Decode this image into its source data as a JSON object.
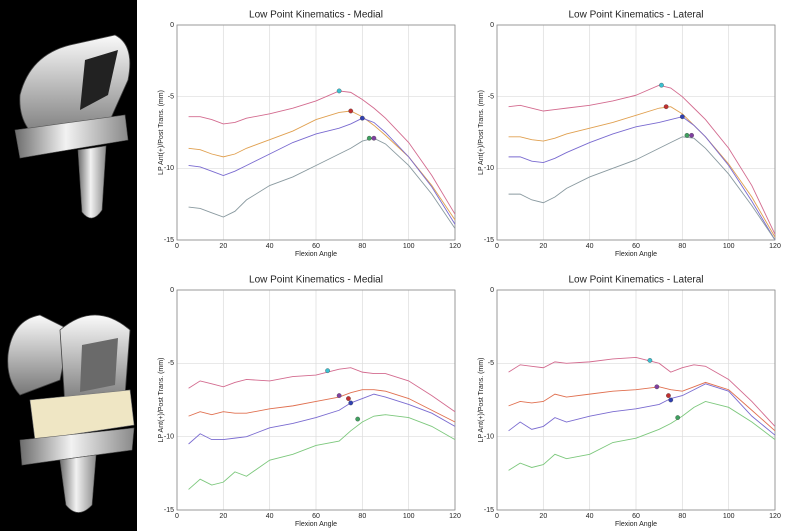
{
  "chart_data": [
    {
      "type": "line",
      "title": "Low Point Kinematics - Medial",
      "xlabel": "Flexion Angle",
      "ylabel": "LP Ant(+)/Post Trans. (mm)",
      "xlim": [
        0,
        120
      ],
      "ylim": [
        -15,
        0
      ],
      "xticks": [
        0,
        20,
        40,
        60,
        80,
        100,
        120
      ],
      "yticks": [
        0,
        -5,
        -10,
        -15
      ],
      "grid": true,
      "x": [
        5,
        10,
        15,
        20,
        25,
        30,
        40,
        50,
        60,
        70,
        75,
        80,
        85,
        90,
        100,
        110,
        120
      ],
      "series": [
        {
          "color": "#d36b8f",
          "values": [
            -6.4,
            -6.4,
            -6.6,
            -6.9,
            -6.8,
            -6.5,
            -6.2,
            -5.8,
            -5.3,
            -4.6,
            -4.7,
            -5.2,
            -5.8,
            -6.5,
            -8.2,
            -10.5,
            -13.2
          ]
        },
        {
          "color": "#e0a050",
          "values": [
            -8.6,
            -8.7,
            -9.0,
            -9.2,
            -9.0,
            -8.6,
            -8.0,
            -7.4,
            -6.6,
            -6.1,
            -6.0,
            -6.4,
            -7.0,
            -7.7,
            -9.2,
            -11.2,
            -13.6
          ]
        },
        {
          "color": "#7a6bd0",
          "values": [
            -9.8,
            -9.9,
            -10.2,
            -10.5,
            -10.2,
            -9.8,
            -9.0,
            -8.2,
            -7.6,
            -7.2,
            -6.9,
            -6.5,
            -6.8,
            -7.5,
            -9.2,
            -11.3,
            -13.9
          ]
        },
        {
          "color": "#8a9aa0",
          "values": [
            -12.7,
            -12.8,
            -13.1,
            -13.4,
            -13.0,
            -12.2,
            -11.2,
            -10.6,
            -9.8,
            -9.0,
            -8.6,
            -8.1,
            -7.9,
            -8.3,
            -9.8,
            -11.8,
            -14.2
          ]
        }
      ],
      "points": {
        "x": [
          70,
          75,
          80,
          83,
          85
        ],
        "y": [
          -4.6,
          -6.0,
          -6.5,
          -7.9,
          -7.9
        ],
        "colors": [
          "#3cc0d0",
          "#c03030",
          "#3040b0",
          "#40a060",
          "#8040a0"
        ]
      }
    },
    {
      "type": "line",
      "title": "Low Point Kinematics - Lateral",
      "xlabel": "Flexion Angle",
      "ylabel": "LP Ant(+)/Post Trans. (mm)",
      "xlim": [
        0,
        120
      ],
      "ylim": [
        -15,
        0
      ],
      "xticks": [
        0,
        20,
        40,
        60,
        80,
        100,
        120
      ],
      "yticks": [
        0,
        -5,
        -10,
        -15
      ],
      "grid": true,
      "x": [
        5,
        10,
        15,
        20,
        25,
        30,
        40,
        50,
        60,
        70,
        75,
        80,
        85,
        90,
        100,
        110,
        120
      ],
      "series": [
        {
          "color": "#d36b8f",
          "values": [
            -5.7,
            -5.6,
            -5.8,
            -6.0,
            -5.9,
            -5.8,
            -5.6,
            -5.3,
            -4.9,
            -4.2,
            -4.4,
            -5.0,
            -5.8,
            -6.6,
            -8.6,
            -11.2,
            -14.6
          ]
        },
        {
          "color": "#e0a050",
          "values": [
            -7.8,
            -7.8,
            -8.0,
            -8.1,
            -7.9,
            -7.6,
            -7.2,
            -6.8,
            -6.3,
            -5.8,
            -5.7,
            -6.2,
            -7.0,
            -7.8,
            -9.7,
            -12.0,
            -14.8
          ]
        },
        {
          "color": "#7a6bd0",
          "values": [
            -9.2,
            -9.2,
            -9.5,
            -9.6,
            -9.3,
            -8.9,
            -8.2,
            -7.6,
            -7.1,
            -6.8,
            -6.6,
            -6.4,
            -7.0,
            -7.8,
            -9.8,
            -12.3,
            -15.0
          ]
        },
        {
          "color": "#8a9aa0",
          "values": [
            -11.8,
            -11.8,
            -12.2,
            -12.4,
            -12.0,
            -11.4,
            -10.6,
            -10.0,
            -9.4,
            -8.6,
            -8.2,
            -7.8,
            -7.9,
            -8.6,
            -10.4,
            -12.6,
            -15.0
          ]
        }
      ],
      "points": {
        "x": [
          71,
          73,
          80,
          82,
          84
        ],
        "y": [
          -4.2,
          -5.7,
          -6.4,
          -7.7,
          -7.7
        ],
        "colors": [
          "#3cc0d0",
          "#c03030",
          "#3040b0",
          "#40a060",
          "#8040a0"
        ]
      }
    },
    {
      "type": "line",
      "title": "Low Point Kinematics - Medial",
      "xlabel": "Flexion Angle",
      "ylabel": "LP Ant(+)/Post Trans. (mm)",
      "xlim": [
        0,
        120
      ],
      "ylim": [
        -15,
        0
      ],
      "xticks": [
        0,
        20,
        40,
        60,
        80,
        100,
        120
      ],
      "yticks": [
        0,
        -5,
        -10,
        -15
      ],
      "grid": true,
      "x": [
        5,
        10,
        15,
        20,
        25,
        30,
        40,
        50,
        60,
        70,
        75,
        80,
        85,
        90,
        100,
        110,
        120
      ],
      "series": [
        {
          "color": "#d36b8f",
          "values": [
            -6.7,
            -6.2,
            -6.4,
            -6.6,
            -6.3,
            -6.1,
            -6.2,
            -5.9,
            -5.8,
            -5.4,
            -5.3,
            -5.6,
            -5.7,
            -5.7,
            -6.2,
            -7.2,
            -8.3
          ]
        },
        {
          "color": "#e07050",
          "values": [
            -8.6,
            -8.3,
            -8.5,
            -8.3,
            -8.4,
            -8.4,
            -8.1,
            -7.9,
            -7.6,
            -7.3,
            -7.0,
            -6.8,
            -6.8,
            -6.9,
            -7.4,
            -8.2,
            -9.0
          ]
        },
        {
          "color": "#7a6bd0",
          "values": [
            -10.5,
            -9.8,
            -10.2,
            -10.2,
            -10.1,
            -10.0,
            -9.4,
            -9.1,
            -8.7,
            -8.2,
            -7.7,
            -7.4,
            -7.1,
            -7.3,
            -7.8,
            -8.4,
            -9.3
          ]
        },
        {
          "color": "#7dc87d",
          "values": [
            -13.6,
            -12.9,
            -13.3,
            -13.1,
            -12.4,
            -12.7,
            -11.6,
            -11.2,
            -10.6,
            -10.3,
            -9.6,
            -9.0,
            -8.6,
            -8.5,
            -8.7,
            -9.3,
            -10.2
          ]
        }
      ],
      "points": {
        "x": [
          65,
          70,
          74,
          75,
          78
        ],
        "y": [
          -5.5,
          -7.2,
          -7.4,
          -7.7,
          -8.8
        ],
        "colors": [
          "#3cc0d0",
          "#8040a0",
          "#c03030",
          "#3040b0",
          "#40a060"
        ]
      }
    },
    {
      "type": "line",
      "title": "Low Point Kinematics - Lateral",
      "xlabel": "Flexion Angle",
      "ylabel": "LP Ant(+)/Post Trans. (mm)",
      "xlim": [
        0,
        120
      ],
      "ylim": [
        -15,
        0
      ],
      "xticks": [
        0,
        20,
        40,
        60,
        80,
        100,
        120
      ],
      "yticks": [
        0,
        -5,
        -10,
        -15
      ],
      "grid": true,
      "x": [
        5,
        10,
        15,
        20,
        25,
        30,
        40,
        50,
        60,
        70,
        75,
        80,
        85,
        90,
        100,
        110,
        120
      ],
      "series": [
        {
          "color": "#d36b8f",
          "values": [
            -5.6,
            -5.1,
            -5.2,
            -5.3,
            -4.9,
            -5.0,
            -4.9,
            -4.7,
            -4.6,
            -5.0,
            -5.6,
            -5.3,
            -5.1,
            -5.2,
            -6.1,
            -7.6,
            -9.3
          ]
        },
        {
          "color": "#e07050",
          "values": [
            -7.9,
            -7.6,
            -7.7,
            -7.6,
            -7.1,
            -7.3,
            -7.1,
            -6.9,
            -6.8,
            -6.6,
            -6.8,
            -6.9,
            -6.6,
            -6.3,
            -6.8,
            -8.2,
            -9.6
          ]
        },
        {
          "color": "#7a6bd0",
          "values": [
            -9.6,
            -9.0,
            -9.5,
            -9.3,
            -8.7,
            -9.0,
            -8.6,
            -8.3,
            -8.1,
            -7.8,
            -7.4,
            -7.2,
            -6.8,
            -6.4,
            -6.9,
            -8.6,
            -9.9
          ]
        },
        {
          "color": "#7dc87d",
          "values": [
            -12.3,
            -11.8,
            -12.1,
            -11.9,
            -11.2,
            -11.5,
            -11.2,
            -10.4,
            -10.1,
            -9.5,
            -9.1,
            -8.6,
            -8.0,
            -7.6,
            -8.0,
            -9.0,
            -10.2
          ]
        }
      ],
      "points": {
        "x": [
          66,
          69,
          74,
          75,
          78
        ],
        "y": [
          -4.8,
          -6.6,
          -7.2,
          -7.5,
          -8.7
        ],
        "colors": [
          "#3cc0d0",
          "#8040a0",
          "#c03030",
          "#3040b0",
          "#40a060"
        ]
      }
    }
  ]
}
